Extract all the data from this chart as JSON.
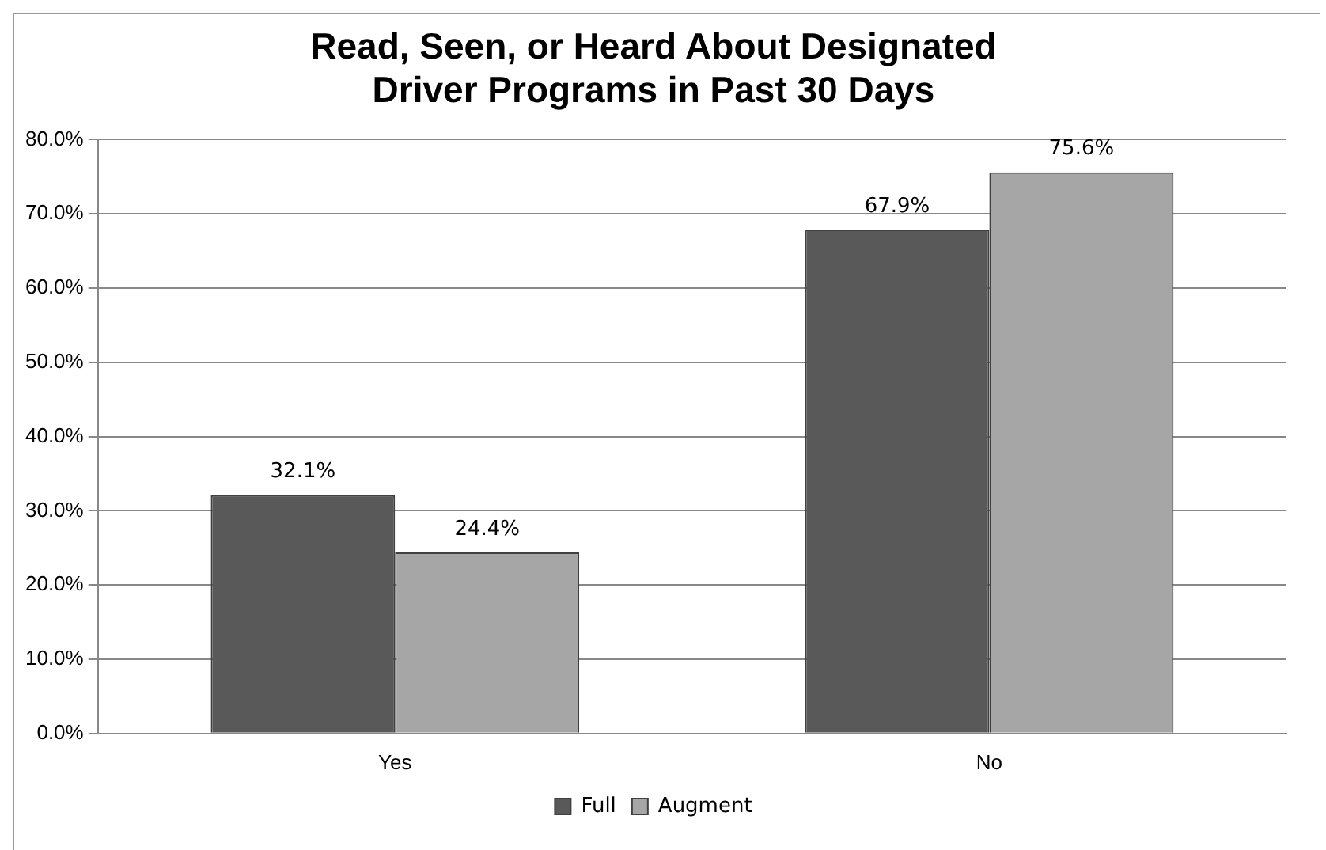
{
  "chart_data": {
    "type": "bar",
    "title": "Read, Seen, or Heard About Designated Driver Programs in Past 30 Days",
    "categories": [
      "Yes",
      "No"
    ],
    "series": [
      {
        "name": "Full",
        "color": "#595959",
        "values": [
          32.1,
          67.9
        ],
        "value_labels": [
          "32.1%",
          "67.9%"
        ]
      },
      {
        "name": "Augment",
        "color": "#a6a6a6",
        "values": [
          24.4,
          75.6
        ],
        "value_labels": [
          "24.4%",
          "75.6%"
        ]
      }
    ],
    "ylim": [
      0,
      80
    ],
    "yticks": [
      {
        "value": 0,
        "label": "0.0%"
      },
      {
        "value": 10,
        "label": "10.0%"
      },
      {
        "value": 20,
        "label": "20.0%"
      },
      {
        "value": 30,
        "label": "30.0%"
      },
      {
        "value": 40,
        "label": "40.0%"
      },
      {
        "value": 50,
        "label": "50.0%"
      },
      {
        "value": 60,
        "label": "60.0%"
      },
      {
        "value": 70,
        "label": "70.0%"
      },
      {
        "value": 80,
        "label": "80.0%"
      }
    ],
    "grid": "y",
    "legend": "bottom"
  }
}
